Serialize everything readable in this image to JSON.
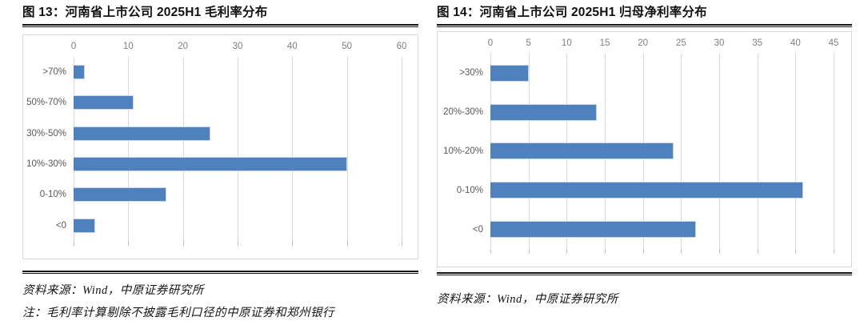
{
  "page": {
    "background": "#ffffff"
  },
  "colors": {
    "bar": "#4f81bd",
    "gridline": "#d9d9d9",
    "chart_border": "#d9d9d9",
    "axis_tick_label": "#7f7f7f",
    "category_label": "#595959",
    "rule": "#141414"
  },
  "figures": [
    {
      "source": "资料来源：Wind，中原证券研究所",
      "note": "注：毛利率计算剔除不披露毛利口径的中原证券和郑州银行"
    },
    {
      "source": "资料来源：Wind，中原证券研究所"
    }
  ],
  "chart_data": [
    {
      "type": "bar",
      "orientation": "horizontal",
      "title": "图 13：河南省上市公司 2025H1 毛利率分布",
      "categories": [
        ">70%",
        "50%-70%",
        "30%-50%",
        "10%-30%",
        "0-10%",
        "<0"
      ],
      "values": [
        2,
        11,
        25,
        50,
        17,
        4
      ],
      "xlabel": "",
      "ylabel": "",
      "xlim": [
        0,
        60
      ],
      "xticks": [
        0,
        10,
        20,
        30,
        40,
        50,
        60
      ],
      "value_axis_position": "top",
      "grid": true,
      "legend": false
    },
    {
      "type": "bar",
      "orientation": "horizontal",
      "title": "图 14：河南省上市公司 2025H1 归母净利率分布",
      "categories": [
        ">30%",
        "20%-30%",
        "10%-20%",
        "0-10%",
        "<0"
      ],
      "values": [
        5,
        14,
        24,
        41,
        27
      ],
      "xlabel": "",
      "ylabel": "",
      "xlim": [
        0,
        45
      ],
      "xticks": [
        0,
        5,
        10,
        15,
        20,
        25,
        30,
        35,
        40,
        45
      ],
      "value_axis_position": "top",
      "grid": true,
      "legend": false
    }
  ]
}
